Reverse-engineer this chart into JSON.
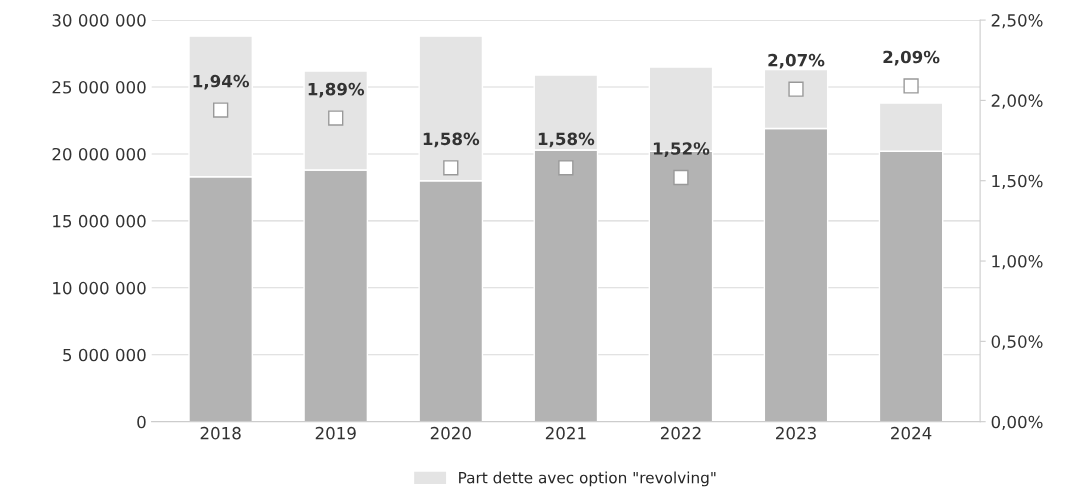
{
  "chart_data": {
    "type": "bar",
    "stacked": true,
    "categories": [
      "2018",
      "2019",
      "2020",
      "2021",
      "2022",
      "2023",
      "2024"
    ],
    "series": [
      {
        "color": "#b3b3b3",
        "values": [
          18300000,
          18800000,
          18000000,
          20300000,
          20200000,
          21900000,
          20200000
        ]
      },
      {
        "name": "Part dette avec option \"revolving\"",
        "color": "#e4e4e4",
        "values": [
          10500000,
          7400000,
          10800000,
          5600000,
          6300000,
          4400000,
          3600000
        ]
      },
      {
        "type": "scatter",
        "axis": "y2",
        "color": "#ffffff",
        "marker": "square",
        "values": [
          1.94,
          1.89,
          1.58,
          1.58,
          1.52,
          2.07,
          2.09
        ],
        "value_labels": [
          "1,94%",
          "1,89%",
          "1,58%",
          "1,58%",
          "1,52%",
          "2,07%",
          "2,09%"
        ]
      }
    ],
    "ylim": [
      0,
      30000000
    ],
    "yticks": [
      {
        "value": 0,
        "label": "0"
      },
      {
        "value": 5000000,
        "label": "5 000 000"
      },
      {
        "value": 10000000,
        "label": "10 000 000"
      },
      {
        "value": 15000000,
        "label": "15 000 000"
      },
      {
        "value": 20000000,
        "label": "20 000 000"
      },
      {
        "value": 25000000,
        "label": "25 000 000"
      },
      {
        "value": 30000000,
        "label": "30 000 000"
      }
    ],
    "y2lim": [
      0,
      2.5
    ],
    "y2ticks": [
      {
        "value": 0,
        "label": "0,00%"
      },
      {
        "value": 0.5,
        "label": "0,50%"
      },
      {
        "value": 1.0,
        "label": "1,00%"
      },
      {
        "value": 1.5,
        "label": "1,50%"
      },
      {
        "value": 2.0,
        "label": "2,00%"
      },
      {
        "value": 2.5,
        "label": "2,50%"
      }
    ],
    "grid": "y",
    "legend": "bottom"
  }
}
